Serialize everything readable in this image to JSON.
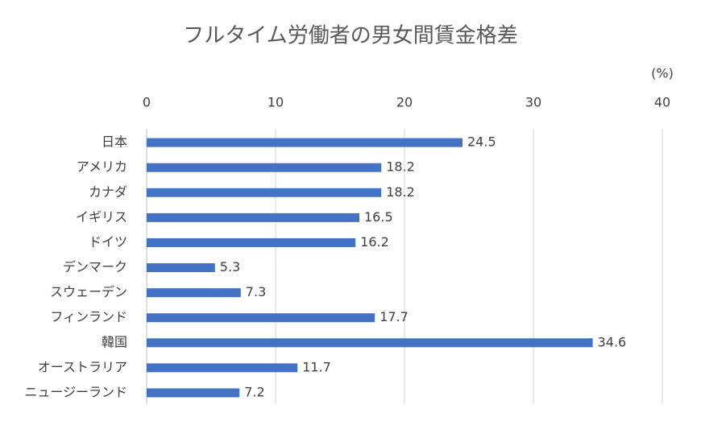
{
  "chart_data": {
    "type": "bar",
    "orientation": "horizontal",
    "title": "フルタイム労働者の男女間賃金格差",
    "unit_label": "(%)",
    "categories": [
      "日本",
      "アメリカ",
      "カナダ",
      "イギリス",
      "ドイツ",
      "デンマーク",
      "スウェーデン",
      "フィンランド",
      "韓国",
      "オーストラリア",
      "ニュージーランド"
    ],
    "values": [
      24.5,
      18.2,
      18.2,
      16.5,
      16.2,
      5.3,
      7.3,
      17.7,
      34.6,
      11.7,
      7.2
    ],
    "color": "#4472c4",
    "xlim": [
      0,
      40
    ],
    "xticks": [
      0,
      10,
      20,
      30,
      40
    ],
    "grid": true
  }
}
